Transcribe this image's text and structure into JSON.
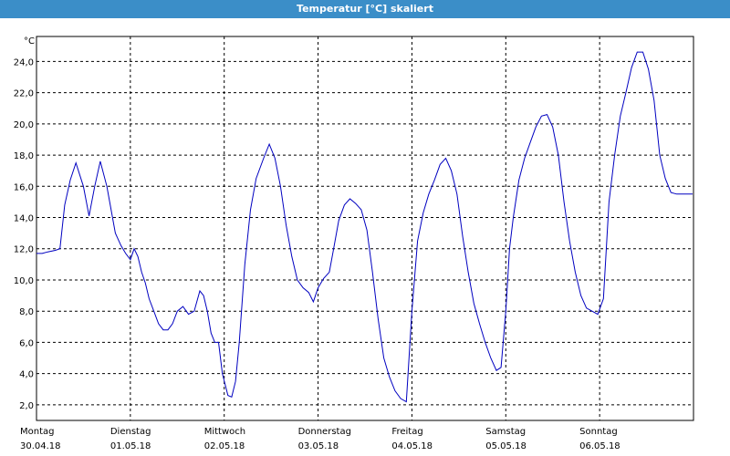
{
  "window": {
    "title": "Temperatur [°C] skaliert"
  },
  "colors": {
    "titlebar": "#3b8ec8",
    "line": "#0000c0",
    "grid": "#000000",
    "background": "#ffffff"
  },
  "chart_data": {
    "type": "line",
    "title": "Temperatur [°C] skaliert",
    "ylabel": "°C",
    "xlabel": "",
    "ylim": [
      1.0,
      25.6
    ],
    "xlim": [
      0,
      7.0
    ],
    "grid": true,
    "y_ticks": [
      "2,0",
      "4,0",
      "6,0",
      "8,0",
      "10,0",
      "12,0",
      "14,0",
      "16,0",
      "18,0",
      "20,0",
      "22,0",
      "24,0"
    ],
    "y_tick_values": [
      2,
      4,
      6,
      8,
      10,
      12,
      14,
      16,
      18,
      20,
      22,
      24
    ],
    "x_ticks": [
      {
        "value": 0,
        "day": "Montag",
        "date": "30.04.18"
      },
      {
        "value": 1,
        "day": "Dienstag",
        "date": "01.05.18"
      },
      {
        "value": 2,
        "day": "Mittwoch",
        "date": "02.05.18"
      },
      {
        "value": 3,
        "day": "Donnerstag",
        "date": "03.05.18"
      },
      {
        "value": 4,
        "day": "Freitag",
        "date": "04.05.18"
      },
      {
        "value": 5,
        "day": "Samstag",
        "date": "05.05.18"
      },
      {
        "value": 6,
        "day": "Sonntag",
        "date": "06.05.18"
      }
    ],
    "series": [
      {
        "x": [
          0.0,
          0.06,
          0.12,
          0.2,
          0.25,
          0.3,
          0.36,
          0.42,
          0.5,
          0.56,
          0.62,
          0.68,
          0.75,
          0.78,
          0.84,
          0.9,
          0.95,
          1.0,
          1.04,
          1.08,
          1.12,
          1.16,
          1.2,
          1.25,
          1.3,
          1.35,
          1.4,
          1.45,
          1.5,
          1.56,
          1.62,
          1.68,
          1.74,
          1.78,
          1.82,
          1.86,
          1.9,
          1.94,
          1.98,
          2.04,
          2.08,
          2.12,
          2.16,
          2.22,
          2.28,
          2.34,
          2.42,
          2.48,
          2.54,
          2.6,
          2.66,
          2.72,
          2.78,
          2.84,
          2.9,
          2.95,
          3.0,
          3.06,
          3.12,
          3.16,
          3.22,
          3.28,
          3.34,
          3.4,
          3.46,
          3.52,
          3.58,
          3.64,
          3.7,
          3.76,
          3.82,
          3.88,
          3.94,
          4.0,
          4.06,
          4.12,
          4.18,
          4.24,
          4.3,
          4.36,
          4.42,
          4.48,
          4.54,
          4.6,
          4.66,
          4.72,
          4.78,
          4.84,
          4.9,
          4.95,
          5.0,
          5.04,
          5.08,
          5.14,
          5.2,
          5.26,
          5.32,
          5.38,
          5.44,
          5.5,
          5.56,
          5.62,
          5.68,
          5.74,
          5.8,
          5.86,
          5.92,
          5.98,
          6.04,
          6.1,
          6.16,
          6.22,
          6.28,
          6.34,
          6.4,
          6.46,
          6.52,
          6.58,
          6.64,
          6.7,
          6.76,
          6.82,
          6.88,
          6.94,
          6.99
        ],
        "y": [
          11.7,
          11.7,
          11.8,
          11.9,
          12.0,
          14.8,
          16.4,
          17.5,
          16.0,
          14.1,
          16.0,
          17.6,
          16.0,
          15.0,
          13.0,
          12.2,
          11.7,
          11.3,
          12.0,
          11.5,
          10.5,
          9.8,
          8.8,
          8.0,
          7.2,
          6.8,
          6.8,
          7.2,
          8.0,
          8.3,
          7.8,
          8.0,
          9.3,
          9.0,
          8.0,
          6.6,
          6.0,
          6.0,
          4.0,
          2.6,
          2.5,
          3.5,
          6.0,
          11.0,
          14.5,
          16.5,
          17.8,
          18.7,
          17.8,
          16.0,
          13.5,
          11.5,
          10.0,
          9.5,
          9.2,
          8.6,
          9.5,
          10.1,
          10.5,
          11.8,
          13.8,
          14.8,
          15.2,
          14.9,
          14.5,
          13.2,
          10.5,
          7.5,
          5.0,
          3.8,
          2.9,
          2.4,
          2.2,
          8.0,
          12.5,
          14.3,
          15.5,
          16.4,
          17.4,
          17.8,
          17.0,
          15.5,
          12.8,
          10.5,
          8.5,
          7.2,
          6.0,
          5.0,
          4.2,
          4.4,
          8.0,
          12.0,
          14.0,
          16.4,
          17.8,
          18.8,
          19.8,
          20.5,
          20.6,
          19.8,
          18.0,
          15.0,
          12.5,
          10.5,
          9.0,
          8.2,
          8.0,
          7.8,
          8.8,
          15.0,
          18.0,
          20.5,
          22.0,
          23.6,
          24.6,
          24.6,
          23.5,
          21.5,
          18.0,
          16.5,
          15.6,
          15.5,
          15.5,
          15.5,
          15.5
        ]
      }
    ]
  }
}
